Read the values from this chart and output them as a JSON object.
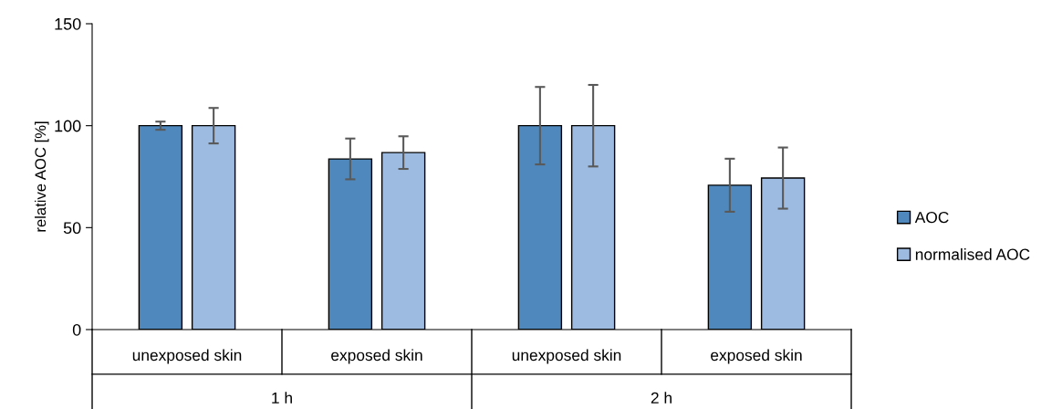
{
  "chart_data": {
    "type": "bar",
    "ylabel": "relative AOC [%]",
    "categories": [
      "unexposed skin",
      "exposed skin",
      "unexposed skin",
      "exposed skin"
    ],
    "series": [
      {
        "name": "AOC",
        "color": "#4f88bd",
        "values": [
          100,
          83.7,
          100,
          70.8
        ],
        "errors": [
          2,
          10,
          19,
          13
        ]
      },
      {
        "name": "normalised AOC",
        "color": "#9dbbe0",
        "values": [
          100,
          86.8,
          100,
          74.3
        ],
        "errors": [
          8.7,
          8,
          20,
          15
        ]
      }
    ],
    "annotations": [
      "1 h",
      "2 h"
    ],
    "ylim": [
      0,
      150
    ],
    "yticks": [
      0,
      50,
      100,
      150
    ],
    "grid": false,
    "legend": "right"
  }
}
